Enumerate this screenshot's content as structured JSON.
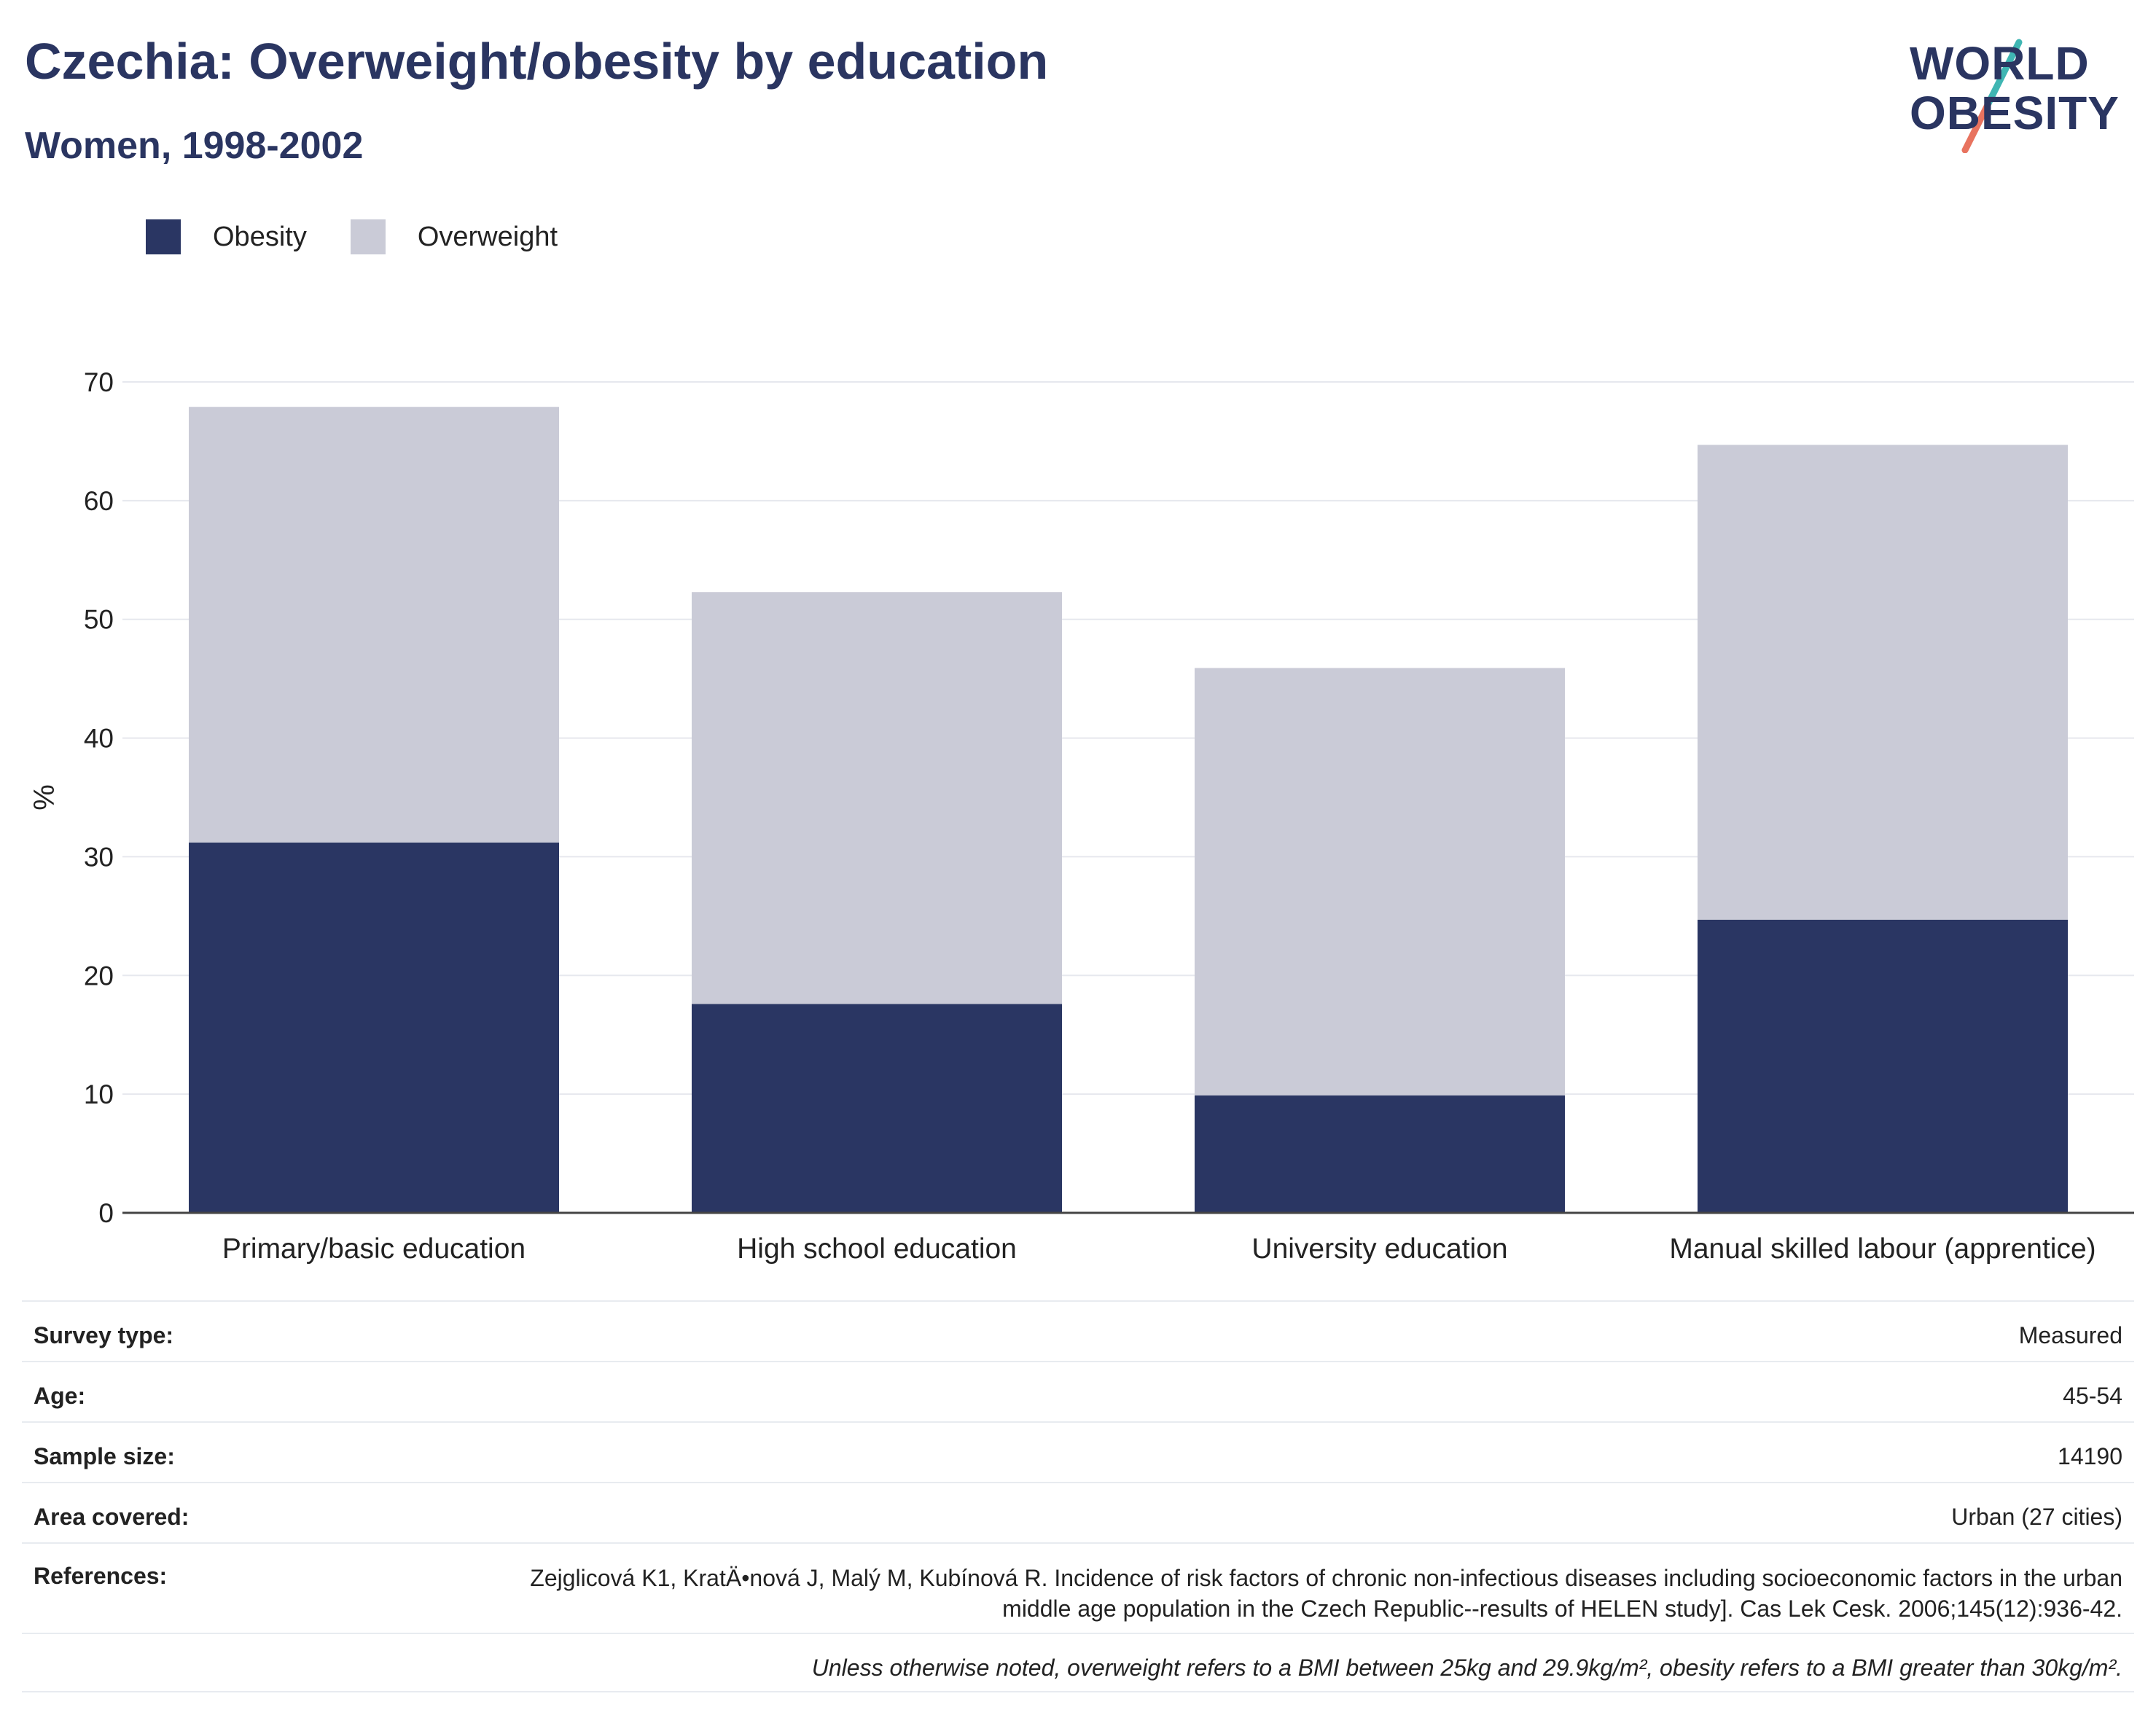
{
  "header": {
    "title": "Czechia: Overweight/obesity by education",
    "subtitle": "Women, 1998-2002"
  },
  "logo": {
    "line1": "WORLD",
    "line2": "OBESITY"
  },
  "legend": [
    {
      "label": "Obesity",
      "color": "#2a3663"
    },
    {
      "label": "Overweight",
      "color": "#cacbd7"
    }
  ],
  "chart_data": {
    "type": "bar",
    "stacked": true,
    "categories": [
      "Primary/basic education",
      "High school education",
      "University education",
      "Manual skilled labour (apprentice)"
    ],
    "series": [
      {
        "name": "Obesity",
        "color": "#2a3663",
        "values": [
          31.2,
          17.6,
          9.9,
          24.7
        ]
      },
      {
        "name": "Overweight",
        "color": "#cacbd7",
        "values": [
          36.7,
          34.7,
          36.0,
          40.0
        ]
      }
    ],
    "ylabel": "%",
    "ylim": [
      0,
      70
    ],
    "yticks": [
      0,
      10,
      20,
      30,
      40,
      50,
      60,
      70
    ],
    "grid": true,
    "legend_position": "top-left"
  },
  "info": {
    "rows": [
      {
        "key": "Survey type:",
        "value": "Measured"
      },
      {
        "key": "Age:",
        "value": "45-54"
      },
      {
        "key": "Sample size:",
        "value": "14190"
      },
      {
        "key": "Area covered:",
        "value": "Urban (27 cities)"
      }
    ],
    "references_key": "References:",
    "references_value": "Zejglicová K1, KratÄ•nová J, Malý M, Kubínová R.  Incidence of risk factors of chronic non-infectious diseases including socioeconomic factors in the urban middle age population in the Czech Republic--results of HELEN study]. Cas Lek Cesk. 2006;145(12):936-42.",
    "note": "Unless otherwise noted, overweight refers to a BMI between 25kg and 29.9kg/m², obesity refers to a BMI greater than 30kg/m²."
  }
}
